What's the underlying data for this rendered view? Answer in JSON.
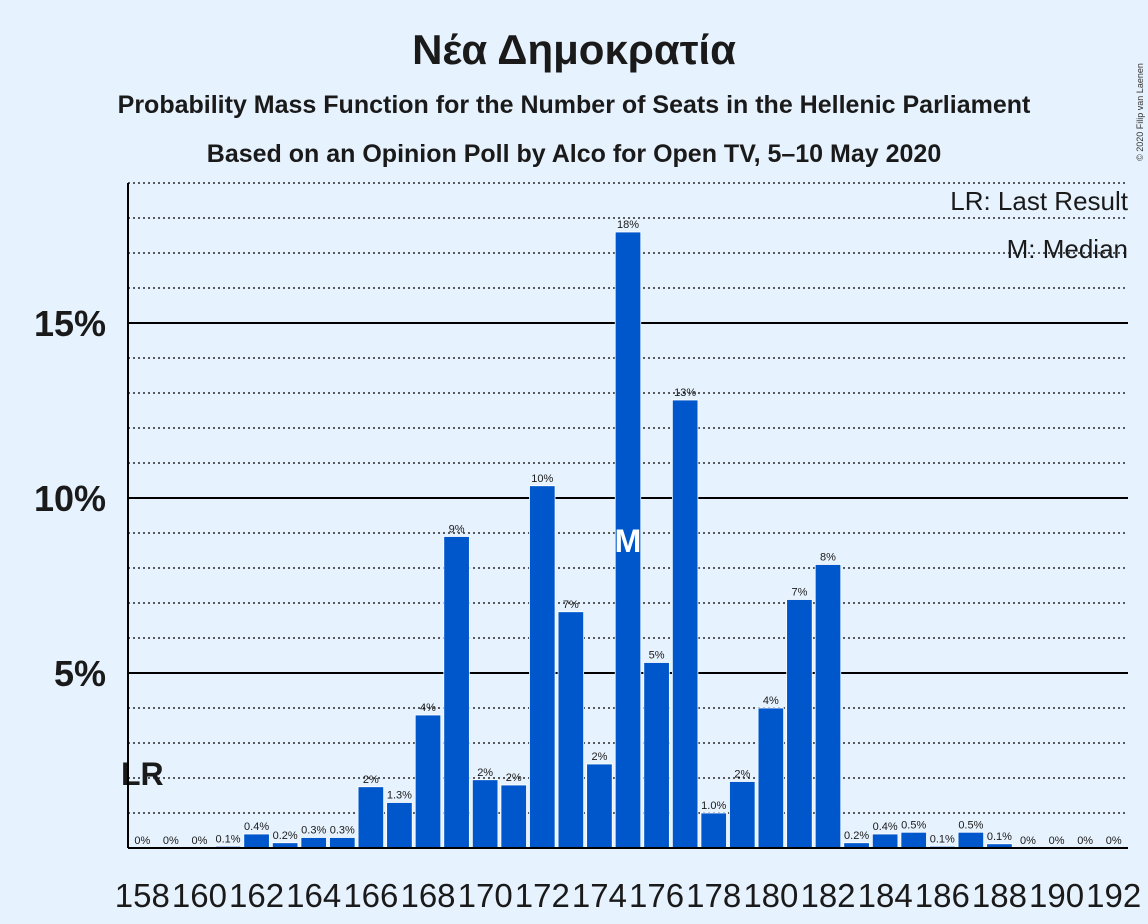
{
  "chart_data": {
    "type": "bar",
    "title": "Νέα Δημοκρατία",
    "subtitle": "Probability Mass Function for the Number of Seats in the Hellenic Parliament",
    "subtitle2": "Based on an Opinion Poll by Alco for Open TV, 5–10 May 2020",
    "credit": "© 2020 Filip van Laenen",
    "legend": [
      "LR: Last Result",
      "M: Median"
    ],
    "last_result_label": "LR",
    "median_label": "M",
    "last_result_seat": 158,
    "median_seat": 175,
    "bar_color": "#0057cc",
    "ylim": [
      0,
      19
    ],
    "yticks": [
      {
        "value": 5,
        "label": "5%"
      },
      {
        "value": 10,
        "label": "10%"
      },
      {
        "value": 15,
        "label": "15%"
      }
    ],
    "xtick_labels": [
      "158",
      "160",
      "162",
      "164",
      "166",
      "168",
      "170",
      "172",
      "174",
      "176",
      "178",
      "180",
      "182",
      "184",
      "186",
      "188",
      "190",
      "192"
    ],
    "seats": [
      158,
      159,
      160,
      161,
      162,
      163,
      164,
      165,
      166,
      167,
      168,
      169,
      170,
      171,
      172,
      173,
      174,
      175,
      176,
      177,
      178,
      179,
      180,
      181,
      182,
      183,
      184,
      185,
      186,
      187,
      188,
      189,
      190,
      191,
      192
    ],
    "values": [
      0,
      0,
      0,
      0.05,
      0.4,
      0.15,
      0.3,
      0.3,
      1.75,
      1.3,
      3.8,
      8.9,
      1.95,
      1.8,
      10.35,
      6.75,
      2.4,
      17.6,
      5.3,
      12.8,
      1.0,
      1.9,
      4.0,
      7.1,
      8.1,
      0.15,
      0.4,
      0.45,
      0.05,
      0.45,
      0.12,
      0,
      0,
      0,
      0
    ],
    "labels": [
      "0%",
      "0%",
      "0%",
      "0.1%",
      "0.4%",
      "0.2%",
      "0.3%",
      "0.3%",
      "2%",
      "1.3%",
      "4%",
      "9%",
      "2%",
      "2%",
      "10%",
      "7%",
      "2%",
      "18%",
      "5%",
      "13%",
      "1.0%",
      "2%",
      "4%",
      "7%",
      "8%",
      "0.2%",
      "0.4%",
      "0.5%",
      "0.1%",
      "0.5%",
      "0.1%",
      "0%",
      "0%",
      "0%",
      "0%"
    ]
  }
}
